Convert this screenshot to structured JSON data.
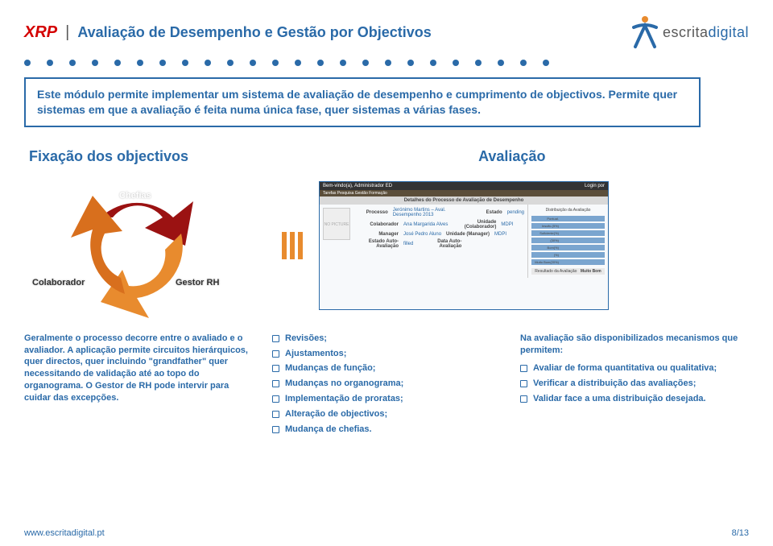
{
  "colors": {
    "blue": "#2a6aa8",
    "red": "#d40000",
    "orange": "#e88b2e",
    "darkred": "#9b1212",
    "grey": "#595959",
    "text": "#333333"
  },
  "header": {
    "brand": "XRP",
    "title": "Avaliação de Desempenho e Gestão por Objectivos",
    "logo_word1": "escrita",
    "logo_word2": "digital"
  },
  "intro": "Este módulo permite implementar um sistema de avaliação de desempenho e cumprimento de objectivos. Permite quer sistemas em que a avaliação é feita numa única fase, quer sistemas a várias fases.",
  "sections": {
    "left": "Fixação dos objectivos",
    "right": "Avaliação"
  },
  "cycle": {
    "top": "Chefias",
    "left": "Colaborador",
    "right": "Gestor RH"
  },
  "mock": {
    "top_left": "Bem-vindo(a), Administrador ED",
    "top_right": "Login por",
    "menu": "Tarefas  Pesquisa  Gestão  Formação",
    "header": "Detalhes do Processo de Avaliação de Desempenho",
    "rows": [
      [
        "Processo",
        "Jerónimo Martins – Aval. Desempenho 2013",
        "Estado",
        "pending"
      ],
      [
        "Colaborador",
        "Ana Margarida Alves",
        "Unidade (Colaborador)",
        "MDPI"
      ],
      [
        "Manager",
        "José Pedro Aluno",
        "Unidade (Manager)",
        "MDPI"
      ],
      [
        "Estado Auto-Avaliação",
        "filled",
        "Data Auto-Avaliação",
        ""
      ]
    ],
    "dist_title": "Distribuição da Avaliação",
    "dist_values": [
      90,
      20,
      50,
      15,
      30,
      55,
      25
    ],
    "dist_labels": [
      "Pontual.",
      "Insufic.(5%)",
      "Suficiente(%)",
      "(30%)",
      "Bom(%)",
      "(%)",
      "Muito Bom(20%)"
    ],
    "result_label": "Resultado da Avaliação",
    "result_value": "Muito Bom"
  },
  "col1": {
    "body": "Geralmente o processo decorre entre o avaliado e o avaliador. A aplicação permite circuitos hierárquicos, quer directos, quer incluindo \"grandfather\" quer necessitando de validação até ao topo do organograma. O Gestor de RH pode intervir para cuidar das excepções."
  },
  "col2": {
    "items": [
      "Revisões;",
      "Ajustamentos;",
      "Mudanças de função;",
      "Mudanças no organograma;",
      "Implementação de proratas;",
      "Alteração de objectivos;",
      "Mudança de chefias."
    ]
  },
  "col3": {
    "lead": "Na avaliação são disponibilizados mecanismos que permitem:",
    "items": [
      "Avaliar de forma quantitativa ou qualitativa;",
      "Verificar a distribuição das avaliações;",
      "Validar face a uma distribuição desejada."
    ]
  },
  "footer": {
    "left": "www.escritadigital.pt",
    "right": "8/13"
  }
}
